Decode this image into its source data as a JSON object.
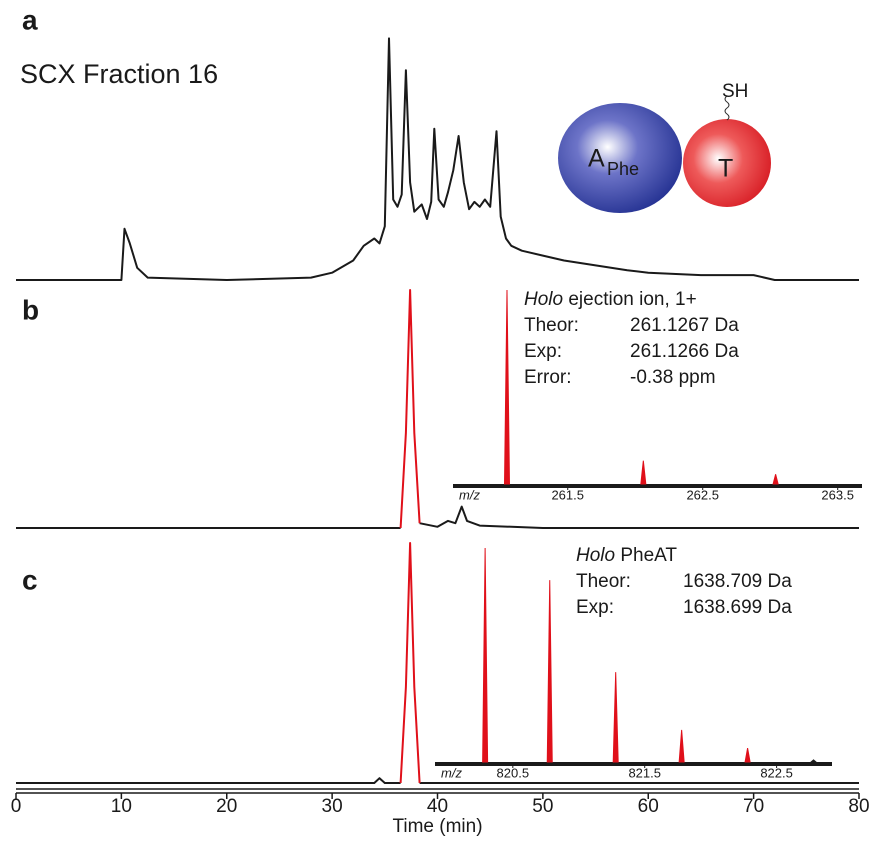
{
  "chart_data": [
    {
      "type": "line",
      "panel_label": "a",
      "title": "SCX Fraction 16",
      "xlim": [
        0,
        80
      ],
      "ylim": [
        0,
        100
      ],
      "x": [
        0,
        10,
        10.3,
        10.8,
        11.5,
        12.5,
        20,
        28,
        30,
        32,
        33,
        34,
        34.5,
        35,
        35.4,
        35.8,
        36.2,
        36.6,
        37,
        37.4,
        37.8,
        38.5,
        39,
        39.4,
        39.7,
        40.1,
        40.6,
        41,
        41.5,
        42,
        42.5,
        43,
        43.5,
        44,
        44.5,
        45,
        45.6,
        46,
        46.5,
        47,
        48,
        50,
        52,
        55,
        58,
        60,
        65,
        70,
        72,
        80
      ],
      "series": [
        {
          "color": "#1a1a1a",
          "values": [
            0,
            0,
            21,
            15,
            5,
            1,
            0,
            1,
            3,
            8,
            14,
            17,
            15,
            22,
            99,
            33,
            30,
            35,
            86,
            40,
            28,
            31,
            25,
            32,
            62,
            33,
            30,
            36,
            45,
            59,
            40,
            29,
            32,
            30,
            33,
            30,
            61,
            26,
            17,
            14,
            12,
            10,
            8,
            6,
            4,
            3,
            2,
            2,
            0,
            0
          ]
        }
      ],
      "diagram": {
        "a_label": "A",
        "a_sub": "Phe",
        "t_label": "T",
        "thiol": "SH"
      }
    },
    {
      "type": "line",
      "panel_label": "b",
      "xlim": [
        0,
        80
      ],
      "ylim": [
        0,
        100
      ],
      "x": [
        0,
        36.5,
        37,
        37.4,
        37.8,
        38.3,
        40,
        41,
        41.7,
        42.3,
        42.8,
        44,
        50,
        80
      ],
      "series": [
        {
          "color": "#1a1a1a",
          "values": [
            0,
            0,
            null,
            null,
            null,
            2,
            0.5,
            3,
            2,
            9,
            3,
            1,
            0,
            0
          ]
        },
        {
          "color": "#e0101a",
          "values": [
            null,
            0,
            40,
            100,
            40,
            2,
            null,
            null,
            null,
            null,
            null,
            null,
            null,
            null
          ]
        }
      ],
      "annotation_title": [
        "Holo",
        "ejection ion, 1+"
      ],
      "annotation_rows": [
        [
          "Theor:",
          "261.1267 Da"
        ],
        [
          "Exp:",
          "261.1266 Da"
        ],
        [
          "Error:",
          "-0.38 ppm"
        ]
      ]
    },
    {
      "type": "line",
      "panel_label": "c",
      "xlim": [
        0,
        80
      ],
      "ylim": [
        0,
        100
      ],
      "xticks": [
        0,
        10,
        20,
        30,
        40,
        50,
        60,
        70,
        80
      ],
      "xlabel": "Time (min)",
      "x": [
        0,
        34,
        34.5,
        35,
        36.5,
        37,
        37.4,
        37.8,
        38.3,
        80
      ],
      "series": [
        {
          "color": "#1a1a1a",
          "values": [
            0,
            0,
            2,
            0,
            0,
            null,
            null,
            null,
            0,
            0
          ]
        },
        {
          "color": "#e0101a",
          "values": [
            null,
            null,
            null,
            null,
            0,
            40,
            100,
            40,
            0,
            null
          ]
        }
      ],
      "annotation_title": [
        "Holo",
        "PheAT"
      ],
      "annotation_rows": [
        [
          "Theor:",
          "1638.709 Da"
        ],
        [
          "Exp:",
          "1638.699 Da"
        ]
      ]
    },
    {
      "type": "spectrum",
      "xlabel": "m/z",
      "xlim": [
        260.65,
        263.68
      ],
      "ylim": [
        0,
        100
      ],
      "xticks": [
        261.5,
        262.5,
        263.5
      ],
      "x": [
        261.05,
        262.06,
        263.04
      ],
      "series": [
        {
          "color": "#e0101a",
          "values": [
            100,
            12,
            5
          ]
        }
      ]
    },
    {
      "type": "spectrum",
      "xlabel": "m/z",
      "xlim": [
        819.91,
        822.92
      ],
      "ylim": [
        0,
        100
      ],
      "xticks": [
        820.5,
        821.5,
        822.5
      ],
      "x": [
        820.29,
        820.78,
        821.28,
        821.78,
        822.28,
        822.78
      ],
      "series": [
        {
          "color": "#e0101a",
          "values": [
            100,
            85,
            42,
            15,
            6.5,
            null
          ]
        },
        {
          "color": "#1a1a1a",
          "values": [
            null,
            null,
            null,
            null,
            null,
            1
          ]
        }
      ]
    }
  ]
}
